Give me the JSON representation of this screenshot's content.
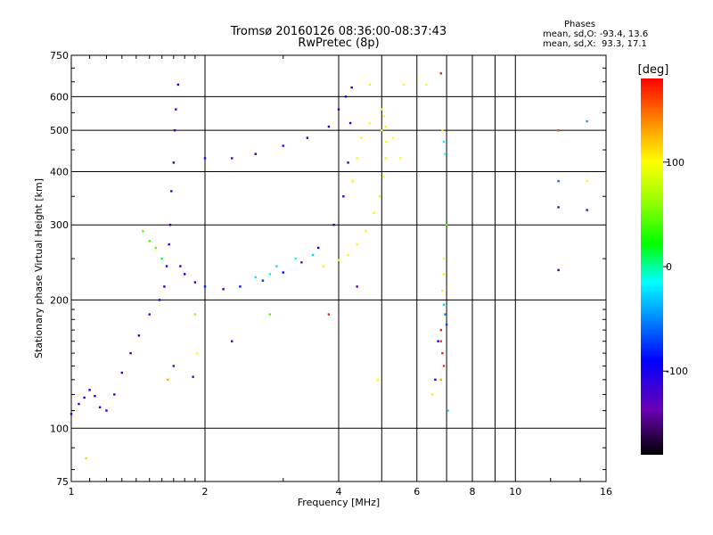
{
  "header": {
    "title": "Tromsø 20160126 08:36:00-08:37:43",
    "subtitle": "RwPretec (8p)",
    "stats_heading": "Phases",
    "stats_o": "mean, sd,O: -93.4, 13.6",
    "stats_x": "mean, sd,X:  93.3, 17.1"
  },
  "chart_data": {
    "type": "scatter",
    "xlabel": "Frequency [MHz]",
    "ylabel": "Stationary phase Virtual Height [km]",
    "x_scale": "log",
    "y_scale": "log",
    "xlim": [
      1,
      16
    ],
    "ylim": [
      75,
      750
    ],
    "x_ticks": [
      1,
      2,
      4,
      6,
      8,
      10,
      16
    ],
    "x_tick_labels": [
      "1",
      "2",
      "4",
      "6",
      "8",
      "10",
      "16"
    ],
    "y_ticks": [
      75,
      100,
      200,
      300,
      400,
      500,
      600,
      750
    ],
    "y_tick_labels": [
      "75",
      "100",
      "200",
      "300",
      "400",
      "500",
      "600",
      "750"
    ],
    "grid": true,
    "colorbar": {
      "label": "[deg]",
      "range": [
        -180,
        180
      ],
      "ticks": [
        100,
        0,
        -100
      ],
      "tick_labels": [
        "100",
        "0",
        "-100"
      ]
    },
    "series": [
      {
        "points": [
          [
            1.0,
            108,
            -100
          ],
          [
            1.04,
            114,
            -100
          ],
          [
            1.07,
            118,
            -100
          ],
          [
            1.1,
            123,
            -105
          ],
          [
            1.13,
            119,
            -95
          ],
          [
            1.16,
            112,
            -100
          ],
          [
            1.2,
            110,
            -100
          ],
          [
            1.25,
            120,
            -100
          ],
          [
            1.3,
            135,
            -100
          ],
          [
            1.36,
            150,
            -95
          ],
          [
            1.42,
            165,
            -100
          ],
          [
            1.5,
            185,
            -105
          ],
          [
            1.58,
            200,
            -100
          ],
          [
            1.62,
            215,
            -95
          ],
          [
            1.64,
            240,
            -100
          ],
          [
            1.66,
            270,
            -105
          ],
          [
            1.67,
            300,
            -100
          ],
          [
            1.68,
            360,
            -100
          ],
          [
            1.7,
            420,
            -95
          ],
          [
            1.71,
            500,
            -100
          ],
          [
            1.72,
            560,
            -105
          ],
          [
            1.74,
            640,
            -100
          ],
          [
            1.76,
            240,
            -100
          ],
          [
            1.8,
            230,
            -90
          ],
          [
            1.9,
            220,
            -90
          ],
          [
            2.0,
            215,
            -85
          ],
          [
            2.2,
            212,
            -90
          ],
          [
            2.4,
            215,
            -85
          ],
          [
            2.7,
            222,
            -75
          ],
          [
            3.0,
            232,
            -90
          ],
          [
            3.3,
            245,
            -80
          ],
          [
            3.6,
            265,
            -95
          ],
          [
            3.9,
            300,
            -100
          ],
          [
            4.1,
            350,
            -100
          ],
          [
            4.2,
            420,
            -95
          ],
          [
            4.25,
            520,
            -100
          ],
          [
            4.28,
            630,
            -105
          ],
          [
            2.0,
            430,
            -100
          ],
          [
            2.3,
            430,
            -105
          ],
          [
            2.6,
            440,
            -100
          ],
          [
            3.0,
            460,
            -100
          ],
          [
            3.4,
            480,
            -105
          ],
          [
            3.8,
            510,
            -100
          ],
          [
            4.0,
            560,
            -100
          ],
          [
            4.15,
            600,
            -105
          ]
        ]
      },
      {
        "points": [
          [
            3.7,
            240,
            90
          ],
          [
            4.0,
            248,
            85
          ],
          [
            4.2,
            255,
            95
          ],
          [
            4.4,
            270,
            100
          ],
          [
            4.6,
            290,
            95
          ],
          [
            4.8,
            320,
            100
          ],
          [
            4.95,
            350,
            90
          ],
          [
            5.05,
            390,
            100
          ],
          [
            5.1,
            430,
            95
          ],
          [
            5.12,
            470,
            100
          ],
          [
            5.1,
            510,
            105
          ],
          [
            5.05,
            540,
            95
          ],
          [
            5.0,
            560,
            90
          ],
          [
            4.7,
            520,
            100
          ],
          [
            4.5,
            480,
            95
          ],
          [
            4.4,
            430,
            100
          ],
          [
            4.3,
            380,
            90
          ]
        ]
      },
      {
        "points": [
          [
            1.5,
            275,
            40
          ],
          [
            1.55,
            265,
            45
          ],
          [
            1.45,
            290,
            50
          ],
          [
            1.6,
            250,
            15
          ],
          [
            2.9,
            240,
            -25
          ],
          [
            3.2,
            250,
            -15
          ],
          [
            2.8,
            230,
            -10
          ],
          [
            2.6,
            226,
            -20
          ],
          [
            3.5,
            255,
            -30
          ]
        ]
      },
      {
        "points": [
          [
            6.8,
            680,
            170
          ],
          [
            6.8,
            170,
            170
          ],
          [
            6.8,
            160,
            165
          ],
          [
            6.85,
            150,
            175
          ],
          [
            6.9,
            140,
            165
          ],
          [
            6.8,
            130,
            130
          ],
          [
            6.85,
            500,
            110
          ],
          [
            6.9,
            470,
            -20
          ],
          [
            6.95,
            440,
            -10
          ],
          [
            7.0,
            300,
            40
          ],
          [
            6.9,
            250,
            100
          ],
          [
            6.9,
            230,
            95
          ],
          [
            6.85,
            210,
            105
          ],
          [
            6.9,
            195,
            -30
          ],
          [
            6.95,
            185,
            -55
          ],
          [
            7.0,
            175,
            -70
          ],
          [
            7.05,
            110,
            -20
          ],
          [
            6.6,
            130,
            -100
          ],
          [
            6.7,
            160,
            -100
          ],
          [
            6.5,
            120,
            85
          ],
          [
            12.5,
            500,
            160
          ],
          [
            12.5,
            380,
            -60
          ],
          [
            12.5,
            330,
            -120
          ],
          [
            12.5,
            235,
            -110
          ],
          [
            14.5,
            525,
            -40
          ],
          [
            14.5,
            380,
            100
          ],
          [
            14.5,
            325,
            -120
          ],
          [
            4.4,
            215,
            -130
          ],
          [
            3.8,
            185,
            170
          ],
          [
            2.3,
            160,
            -110
          ],
          [
            2.8,
            185,
            40
          ],
          [
            1.9,
            185,
            60
          ],
          [
            1.7,
            140,
            -120
          ],
          [
            1.65,
            130,
            130
          ],
          [
            1.88,
            132,
            -120
          ],
          [
            1.92,
            150,
            100
          ],
          [
            1.08,
            85,
            70
          ],
          [
            5.0,
            500,
            90
          ],
          [
            5.3,
            480,
            100
          ],
          [
            5.6,
            640,
            95
          ],
          [
            6.3,
            640,
            100
          ],
          [
            4.7,
            640,
            90
          ],
          [
            5.5,
            430,
            100
          ],
          [
            4.9,
            130,
            100
          ]
        ]
      }
    ]
  }
}
